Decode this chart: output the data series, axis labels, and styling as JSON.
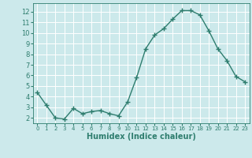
{
  "x": [
    0,
    1,
    2,
    3,
    4,
    5,
    6,
    7,
    8,
    9,
    10,
    11,
    12,
    13,
    14,
    15,
    16,
    17,
    18,
    19,
    20,
    21,
    22,
    23
  ],
  "y": [
    4.4,
    3.2,
    2.0,
    1.9,
    2.9,
    2.4,
    2.6,
    2.7,
    2.4,
    2.2,
    3.5,
    5.8,
    8.5,
    9.8,
    10.4,
    11.3,
    12.1,
    12.1,
    11.7,
    10.2,
    8.5,
    7.4,
    5.9,
    5.4
  ],
  "line_color": "#2e7d6e",
  "marker": "+",
  "marker_size": 4,
  "line_width": 1.0,
  "bg_color": "#cce9eb",
  "grid_color": "#ffffff",
  "xlabel": "Humidex (Indice chaleur)",
  "xlabel_fontsize": 7,
  "tick_color": "#2e7d6e",
  "ylim": [
    1.5,
    12.8
  ],
  "xlim": [
    -0.5,
    23.5
  ],
  "yticks": [
    2,
    3,
    4,
    5,
    6,
    7,
    8,
    9,
    10,
    11,
    12
  ],
  "xticks": [
    0,
    1,
    2,
    3,
    4,
    5,
    6,
    7,
    8,
    9,
    10,
    11,
    12,
    13,
    14,
    15,
    16,
    17,
    18,
    19,
    20,
    21,
    22,
    23
  ]
}
